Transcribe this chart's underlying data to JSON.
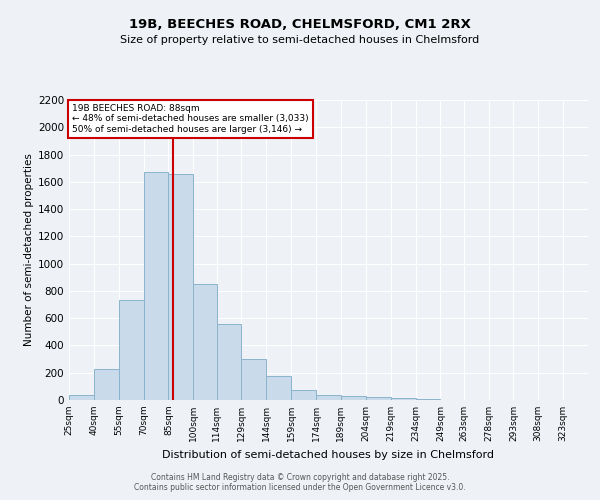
{
  "title1": "19B, BEECHES ROAD, CHELMSFORD, CM1 2RX",
  "title2": "Size of property relative to semi-detached houses in Chelmsford",
  "xlabel": "Distribution of semi-detached houses by size in Chelmsford",
  "ylabel": "Number of semi-detached properties",
  "bin_labels": [
    "25sqm",
    "40sqm",
    "55sqm",
    "70sqm",
    "85sqm",
    "100sqm",
    "114sqm",
    "129sqm",
    "144sqm",
    "159sqm",
    "174sqm",
    "189sqm",
    "204sqm",
    "219sqm",
    "234sqm",
    "249sqm",
    "263sqm",
    "278sqm",
    "293sqm",
    "308sqm",
    "323sqm"
  ],
  "bin_edges": [
    25,
    40,
    55,
    70,
    85,
    100,
    114,
    129,
    144,
    159,
    174,
    189,
    204,
    219,
    234,
    249,
    263,
    278,
    293,
    308,
    323
  ],
  "bin_widths": [
    15,
    15,
    15,
    15,
    15,
    14,
    15,
    15,
    15,
    15,
    15,
    15,
    15,
    15,
    15,
    14,
    15,
    15,
    15,
    15,
    15
  ],
  "values": [
    40,
    225,
    730,
    1670,
    1660,
    850,
    560,
    300,
    175,
    70,
    40,
    30,
    20,
    15,
    10,
    0,
    0,
    0,
    0,
    0,
    0
  ],
  "bar_color": "#c9daea",
  "bar_edgecolor": "#8ab4cc",
  "property_size": 88,
  "red_line_color": "#cc0000",
  "annotation_text_line1": "19B BEECHES ROAD: 88sqm",
  "annotation_text_line2": "← 48% of semi-detached houses are smaller (3,033)",
  "annotation_text_line3": "50% of semi-detached houses are larger (3,146) →",
  "annotation_edge_color": "#cc0000",
  "ylim": [
    0,
    2200
  ],
  "yticks": [
    0,
    200,
    400,
    600,
    800,
    1000,
    1200,
    1400,
    1600,
    1800,
    2000,
    2200
  ],
  "background_color": "#eef2f7",
  "grid_color": "#ffffff",
  "footer_line1": "Contains HM Land Registry data © Crown copyright and database right 2025.",
  "footer_line2": "Contains public sector information licensed under the Open Government Licence v3.0."
}
